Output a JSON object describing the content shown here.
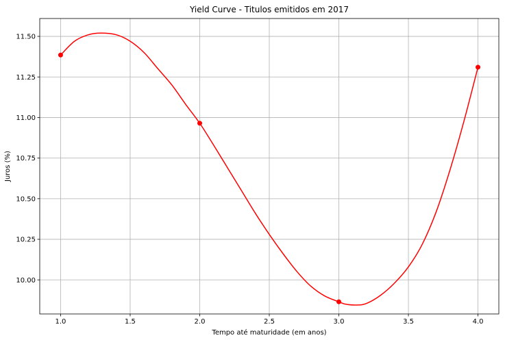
{
  "chart_data": {
    "type": "line",
    "title": "Yield Curve - Titulos emitidos em 2017",
    "xlabel": "Tempo até maturidade (em anos)",
    "ylabel": "Juros (%)",
    "xlim": [
      0.85,
      4.15
    ],
    "ylim": [
      9.79,
      11.61
    ],
    "xticks": [
      1.0,
      1.5,
      2.0,
      2.5,
      3.0,
      3.5,
      4.0
    ],
    "xtick_labels": [
      "1.0",
      "1.5",
      "2.0",
      "2.5",
      "3.0",
      "3.5",
      "4.0"
    ],
    "yticks": [
      10.0,
      10.25,
      10.5,
      10.75,
      11.0,
      11.25,
      11.5
    ],
    "ytick_labels": [
      "10.00",
      "10.25",
      "10.50",
      "10.75",
      "11.00",
      "11.25",
      "11.50"
    ],
    "grid": true,
    "color": "#ff0000",
    "points": {
      "x": [
        1.0,
        2.0,
        3.0,
        4.0
      ],
      "y": [
        11.385,
        10.965,
        9.865,
        11.31
      ]
    },
    "curve": {
      "x": [
        1.0,
        1.1,
        1.2,
        1.29,
        1.4,
        1.5,
        1.6,
        1.7,
        1.8,
        1.9,
        2.0,
        2.1,
        2.2,
        2.3,
        2.4,
        2.5,
        2.6,
        2.7,
        2.8,
        2.9,
        3.0,
        3.05,
        3.13,
        3.2,
        3.3,
        3.4,
        3.5,
        3.6,
        3.7,
        3.8,
        3.9,
        4.0
      ],
      "y": [
        11.385,
        11.47,
        11.51,
        11.52,
        11.51,
        11.47,
        11.4,
        11.3,
        11.2,
        11.08,
        10.965,
        10.83,
        10.69,
        10.55,
        10.41,
        10.28,
        10.16,
        10.05,
        9.96,
        9.9,
        9.865,
        9.85,
        9.845,
        9.855,
        9.905,
        9.98,
        10.08,
        10.22,
        10.42,
        10.68,
        10.98,
        11.31
      ]
    }
  }
}
